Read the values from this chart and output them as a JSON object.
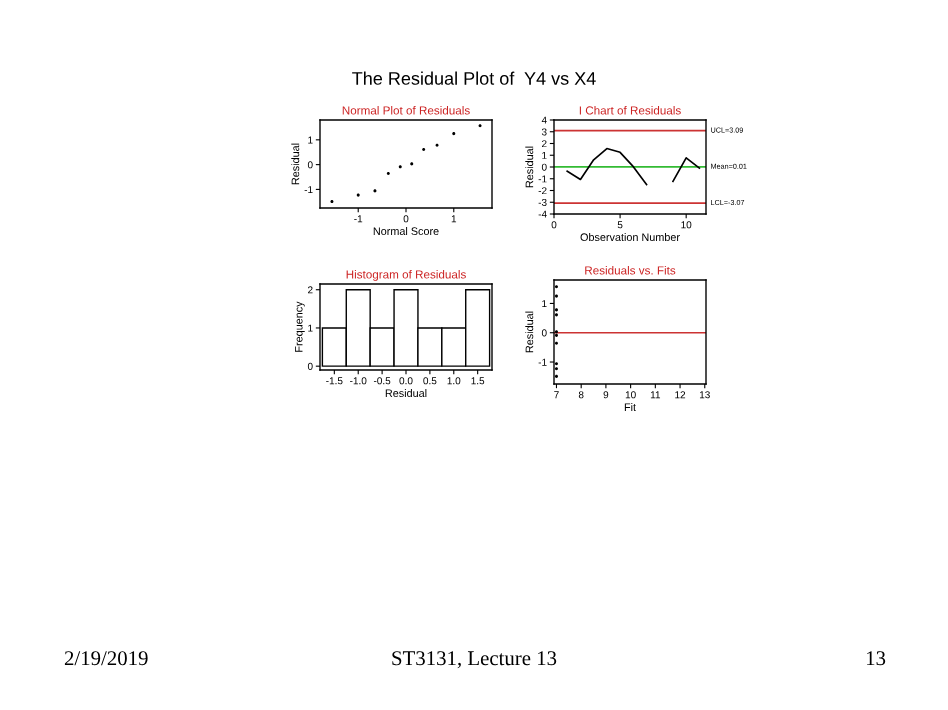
{
  "chart_data": [
    {
      "type": "scatter",
      "title": "Normal Plot of Residuals",
      "xlabel": "Normal Score",
      "ylabel": "Residual",
      "x": [
        -1.55,
        -1.0,
        -0.65,
        -0.37,
        -0.12,
        0.12,
        0.37,
        0.65,
        1.0,
        1.55
      ],
      "values": [
        -1.49,
        -1.23,
        -1.06,
        -0.36,
        -0.09,
        0.03,
        0.61,
        0.78,
        1.25,
        1.57
      ],
      "color": "#000000",
      "marker": "circle",
      "xlim": [
        -1.8,
        1.8
      ],
      "ylim": [
        -1.75,
        1.8
      ],
      "xticks": [
        -1,
        0,
        1
      ],
      "yticks": [
        -1,
        0,
        1
      ],
      "grid": false,
      "annotations": [
        "The Residual Plot of  Y4 vs X4"
      ]
    },
    {
      "type": "line",
      "title": "I Chart of Residuals",
      "xlabel": "Observation Number",
      "ylabel": "Residual",
      "x": [
        1,
        2,
        3,
        4,
        5,
        6,
        7,
        8,
        9,
        10,
        11
      ],
      "values": [
        -0.36,
        -1.06,
        0.61,
        1.57,
        1.25,
        0.03,
        -1.49,
        null,
        -1.23,
        0.78,
        -0.09
      ],
      "color": "#000000",
      "xlim": [
        0,
        11.5
      ],
      "ylim": [
        -4,
        4
      ],
      "xticks": [
        0,
        5,
        10
      ],
      "yticks": [
        -4,
        -3,
        -2,
        -1,
        0,
        1,
        2,
        3,
        4
      ],
      "grid": false,
      "ref_lines": [
        {
          "axis": "y",
          "value": 3.09,
          "label": "UCL=3.09",
          "color": "#cc3333"
        },
        {
          "axis": "y",
          "value": 0.01,
          "label": "Mean=0.01",
          "color": "#33bb33"
        },
        {
          "axis": "y",
          "value": -3.07,
          "label": "LCL=-3.07",
          "color": "#cc3333"
        }
      ]
    },
    {
      "type": "histogram",
      "title": "Histogram of Residuals",
      "xlabel": "Residual",
      "ylabel": "Frequency",
      "bins": [
        -1.75,
        -1.25,
        -0.75,
        -0.25,
        0.25,
        0.75,
        1.25,
        1.75
      ],
      "values": [
        1,
        2,
        1,
        2,
        1,
        1,
        2
      ],
      "color": "#ffffff",
      "xlim": [
        -1.8,
        1.8
      ],
      "ylim": [
        -0.1,
        2.15
      ],
      "xticks": [
        {
          "value": -1.5,
          "label": "-1.5"
        },
        {
          "value": -1.0,
          "label": "-1.0"
        },
        {
          "value": -0.5,
          "label": "-0.5"
        },
        {
          "value": 0,
          "label": "0.0"
        },
        {
          "value": 0.5,
          "label": "0.5"
        },
        {
          "value": 1.0,
          "label": "1.0"
        },
        {
          "value": 1.5,
          "label": "1.5"
        }
      ],
      "yticks": [
        0,
        1,
        2
      ],
      "grid": false
    },
    {
      "type": "scatter",
      "title": "Residuals vs. Fits",
      "xlabel": "Fit",
      "ylabel": "Residual",
      "x": [
        7,
        7,
        7,
        7,
        7,
        7,
        7,
        7,
        7,
        7
      ],
      "values": [
        -0.36,
        -1.06,
        0.61,
        1.57,
        1.25,
        0.03,
        -1.49,
        -1.23,
        0.78,
        -0.09
      ],
      "color": "#000000",
      "marker": "circle",
      "xlim": [
        6.9,
        13.05
      ],
      "ylim": [
        -1.75,
        1.8
      ],
      "xticks": [
        7,
        8,
        9,
        10,
        11,
        12,
        13
      ],
      "yticks": [
        -1,
        0,
        1
      ],
      "grid": false,
      "ref_lines": [
        {
          "axis": "y",
          "value": 0,
          "color": "#cc3333"
        }
      ],
      "annotations": [
        "2/19/2019",
        "ST3131, Lecture 13",
        "13"
      ]
    }
  ]
}
